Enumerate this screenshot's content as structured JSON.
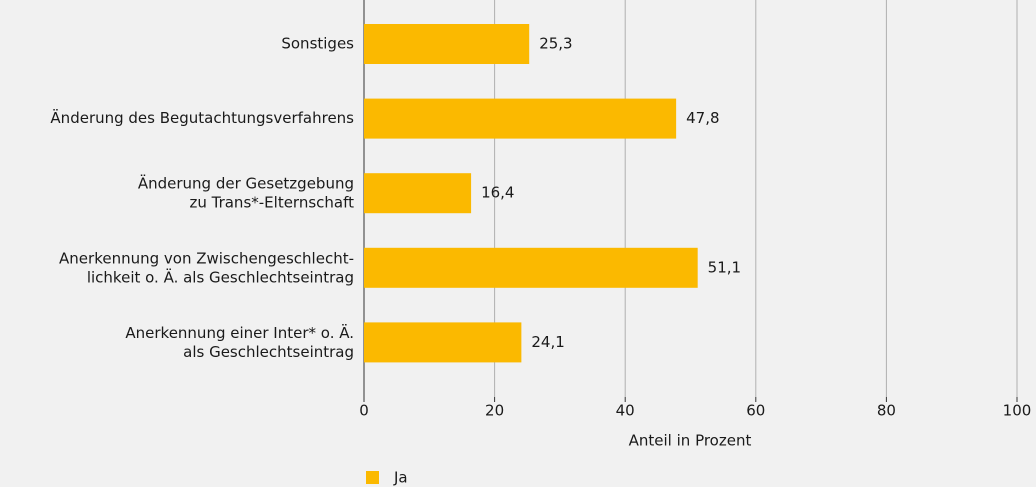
{
  "chart_data": {
    "type": "bar",
    "orientation": "horizontal",
    "categories": [
      "Sonstiges",
      "Änderung des Begutachtungsverfahrens",
      "Änderung der Gesetzgebung\nzu Trans*-Elternschaft",
      "Anerkennung von Zwischengeschlecht-\nlichkeit o. Ä. als Geschlechtseintrag",
      "Anerkennung einer Inter* o. Ä.\nals Geschlechtseintrag"
    ],
    "series": [
      {
        "name": "Ja",
        "color": "#fbb900",
        "values": [
          25.3,
          47.8,
          16.4,
          51.1,
          24.1
        ],
        "value_labels": [
          "25,3",
          "47,8",
          "16,4",
          "51,1",
          "24,1"
        ]
      }
    ],
    "x_label": "Anteil in Prozent",
    "xlim": [
      0,
      100
    ],
    "xticks": [
      0,
      20,
      40,
      60,
      80,
      100
    ],
    "grid": true,
    "legend": "bottom"
  }
}
